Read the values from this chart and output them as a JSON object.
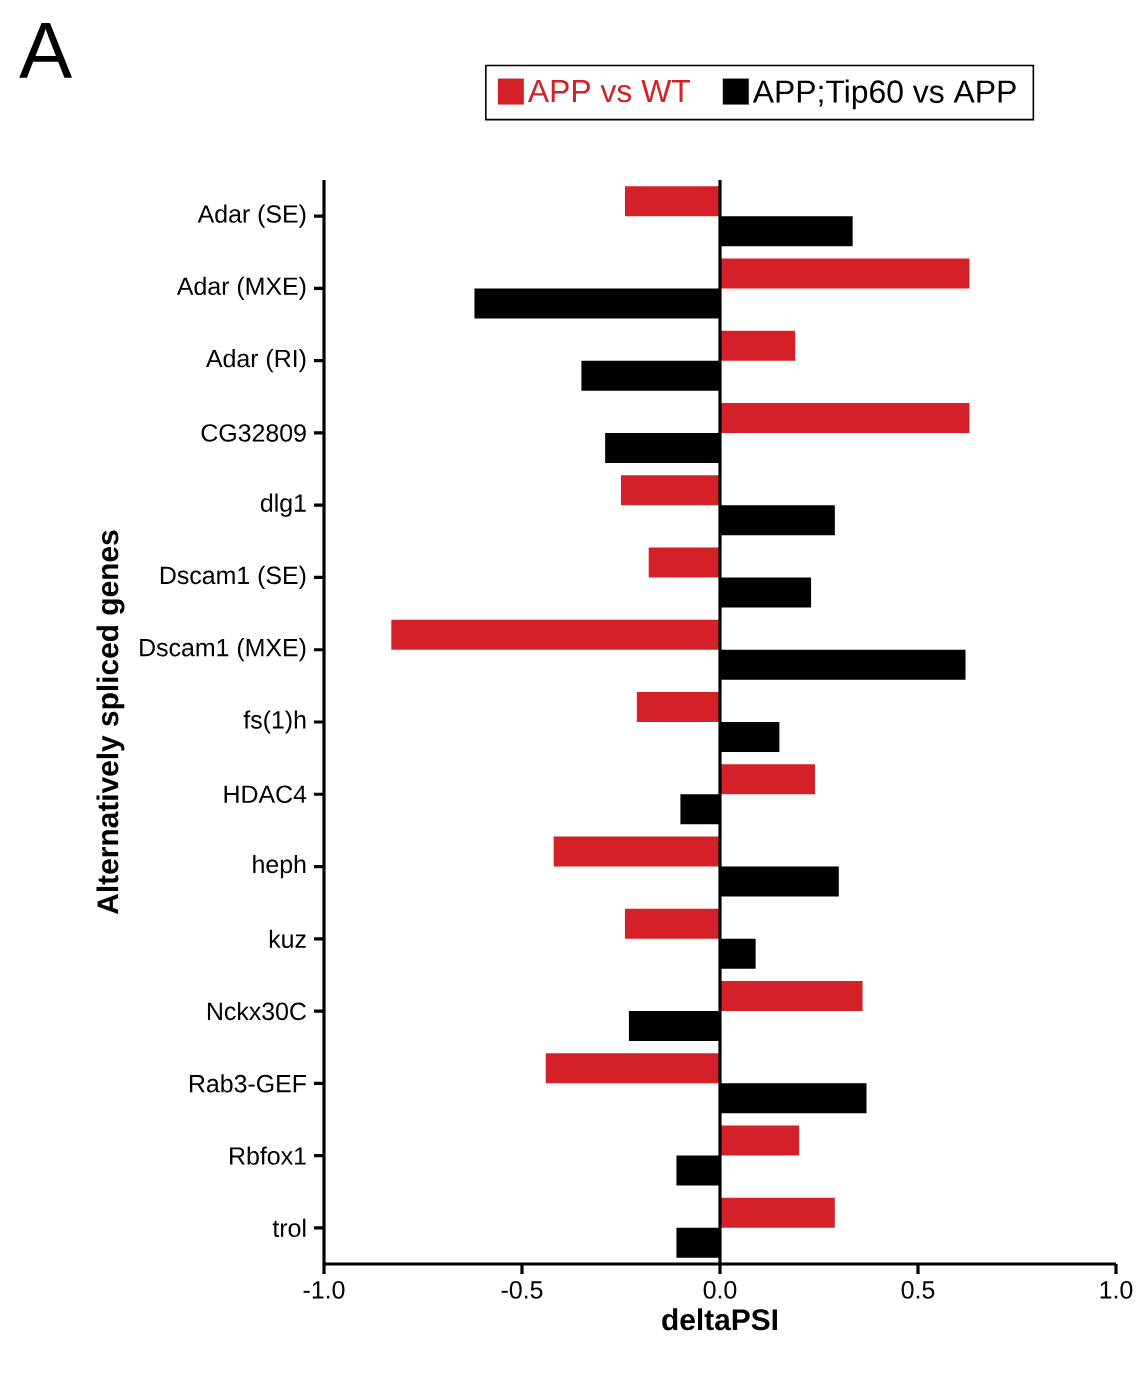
{
  "chart_data": {
    "type": "bar",
    "orientation": "horizontal",
    "xlabel": "deltaPSI",
    "ylabel": "Alternatively spliced genes",
    "annotations": [
      "A"
    ],
    "categories": [
      "Adar (SE)",
      "Adar (MXE)",
      "Adar (RI)",
      "CG32809",
      "dlg1",
      "Dscam1 (SE)",
      "Dscam1 (MXE)",
      "fs(1)h",
      "HDAC4",
      "heph",
      "kuz",
      "Nckx30C",
      "Rab3-GEF",
      "Rbfox1",
      "trol"
    ],
    "series": [
      {
        "name": "APP vs WT",
        "color": "#d42027",
        "values": [
          -0.24,
          0.63,
          0.19,
          0.63,
          -0.25,
          -0.18,
          -0.83,
          -0.21,
          0.24,
          -0.42,
          -0.24,
          0.36,
          -0.44,
          0.2,
          0.29
        ]
      },
      {
        "name": "APP;Tip60 vs APP",
        "color": "#000000",
        "values": [
          0.335,
          -0.62,
          -0.35,
          -0.29,
          0.29,
          0.23,
          0.62,
          0.15,
          -0.1,
          0.3,
          0.09,
          -0.23,
          0.37,
          -0.11,
          -0.11
        ]
      }
    ],
    "xlim": [
      -1,
      1
    ],
    "xticks": [
      {
        "value": -1,
        "label": "-1.0"
      },
      {
        "value": -0.5,
        "label": "-0.5"
      },
      {
        "value": 0,
        "label": "0.0"
      },
      {
        "value": 0.5,
        "label": "0.5"
      },
      {
        "value": 1,
        "label": "1.0"
      }
    ],
    "ref_lines": [
      {
        "axis": "x",
        "value": 0,
        "color": "#000000"
      }
    ],
    "legend": "top",
    "grid": false
  }
}
